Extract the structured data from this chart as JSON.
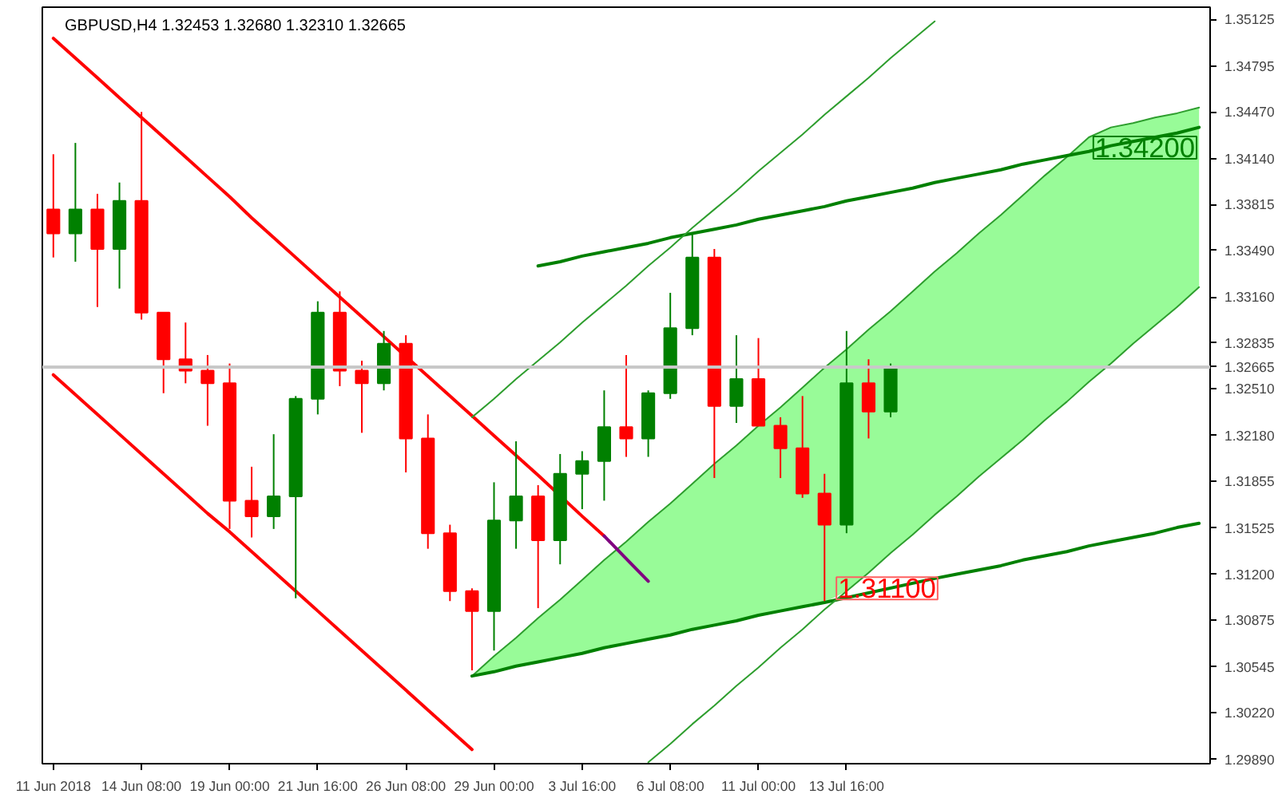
{
  "chart_data": {
    "type": "candlestick",
    "title": "GBPUSD,H4  1.32453 1.32680 1.32310 1.32665",
    "categories": [
      "11 Jun 2018",
      null,
      null,
      null,
      "14 Jun 08:00",
      null,
      null,
      null,
      "19 Jun 00:00",
      null,
      null,
      null,
      "21 Jun 16:00",
      null,
      null,
      null,
      "26 Jun 08:00",
      null,
      null,
      null,
      "29 Jun 00:00",
      null,
      null,
      null,
      "3 Jul 16:00",
      null,
      null,
      null,
      "6 Jul 08:00",
      null,
      null,
      null,
      "11 Jul 00:00",
      null,
      null,
      null,
      "13 Jul 16:00",
      null,
      null,
      null,
      null,
      null,
      null,
      null,
      null,
      null,
      null,
      null,
      null,
      null,
      null,
      null,
      null
    ],
    "ohlc": [
      [
        1.3378,
        1.3417,
        1.3344,
        1.3361
      ],
      [
        1.3361,
        1.3425,
        1.3341,
        1.3378
      ],
      [
        1.3378,
        1.3389,
        1.3309,
        1.335
      ],
      [
        1.335,
        1.3397,
        1.3322,
        1.3384
      ],
      [
        1.3384,
        1.3447,
        1.33,
        1.3305
      ],
      [
        1.3305,
        1.3305,
        1.3248,
        1.3272
      ],
      [
        1.3272,
        1.3298,
        1.3255,
        1.3264
      ],
      [
        1.3264,
        1.3275,
        1.3225,
        1.3255
      ],
      [
        1.3255,
        1.3269,
        1.3152,
        1.3172
      ],
      [
        1.3172,
        1.3196,
        1.3146,
        1.3161
      ],
      [
        1.3161,
        1.3219,
        1.3152,
        1.3175
      ],
      [
        1.3175,
        1.3246,
        1.3103,
        1.3244
      ],
      [
        1.3244,
        1.3313,
        1.3233,
        1.3305
      ],
      [
        1.3305,
        1.332,
        1.3253,
        1.3264
      ],
      [
        1.3264,
        1.3271,
        1.322,
        1.3255
      ],
      [
        1.3255,
        1.3292,
        1.325,
        1.3283
      ],
      [
        1.3283,
        1.3289,
        1.3192,
        1.3216
      ],
      [
        1.3216,
        1.3233,
        1.3138,
        1.3149
      ],
      [
        1.3149,
        1.3155,
        1.3101,
        1.3108
      ],
      [
        1.3108,
        1.311,
        1.3052,
        1.3094
      ],
      [
        1.3094,
        1.3185,
        1.3066,
        1.3158
      ],
      [
        1.3158,
        1.3214,
        1.3138,
        1.3175
      ],
      [
        1.3175,
        1.3183,
        1.3096,
        1.3144
      ],
      [
        1.3144,
        1.3205,
        1.3127,
        1.3191
      ],
      [
        1.3191,
        1.3207,
        1.3166,
        1.32
      ],
      [
        1.32,
        1.325,
        1.3172,
        1.3224
      ],
      [
        1.3224,
        1.3275,
        1.3203,
        1.3216
      ],
      [
        1.3216,
        1.325,
        1.3203,
        1.3248
      ],
      [
        1.3248,
        1.3319,
        1.3244,
        1.3294
      ],
      [
        1.3294,
        1.3361,
        1.3289,
        1.3344
      ],
      [
        1.3344,
        1.335,
        1.3188,
        1.3239
      ],
      [
        1.3239,
        1.3289,
        1.3227,
        1.3258
      ],
      [
        1.3258,
        1.3287,
        1.3225,
        1.3225
      ],
      [
        1.3225,
        1.3231,
        1.3188,
        1.3209
      ],
      [
        1.3209,
        1.3246,
        1.3174,
        1.3177
      ],
      [
        1.3177,
        1.3191,
        1.3101,
        1.3155
      ],
      [
        1.3155,
        1.3292,
        1.3149,
        1.3255
      ],
      [
        1.3255,
        1.3272,
        1.3216,
        1.3235
      ],
      [
        1.3235,
        1.3269,
        1.3231,
        1.32665
      ],
      null,
      null,
      null,
      null,
      null,
      null,
      null,
      null,
      null,
      null,
      null,
      null,
      null,
      null
    ],
    "colors": [
      "#ff0000",
      "#008000",
      "#ff0000",
      "#008000",
      "#ff0000",
      "#ff0000",
      "#ff0000",
      "#ff0000",
      "#ff0000",
      "#ff0000",
      "#008000",
      "#008000",
      "#008000",
      "#ff0000",
      "#ff0000",
      "#008000",
      "#ff0000",
      "#ff0000",
      "#ff0000",
      "#ff0000",
      "#008000",
      "#008000",
      "#ff0000",
      "#008000",
      "#008000",
      "#008000",
      "#ff0000",
      "#008000",
      "#008000",
      "#008000",
      "#ff0000",
      "#008000",
      "#ff0000",
      "#ff0000",
      "#ff0000",
      "#ff0000",
      "#008000",
      "#ff0000",
      "#008000",
      null,
      null,
      null,
      null,
      null,
      null,
      null,
      null,
      null,
      null,
      null,
      null,
      null,
      null
    ],
    "series": [
      {
        "type": "line",
        "color": "#2e9e2e",
        "values": [
          null,
          null,
          null,
          null,
          null,
          null,
          null,
          null,
          null,
          null,
          null,
          null,
          null,
          null,
          null,
          null,
          null,
          null,
          null,
          1.3048,
          1.3062,
          1.3075,
          1.3089,
          1.3102,
          1.3116,
          1.313,
          1.3143,
          1.3157,
          1.317,
          1.3184,
          1.3198,
          1.3211,
          1.3225,
          1.3238,
          1.3252,
          1.3266,
          1.3279,
          1.3293,
          1.3306,
          1.332,
          1.3334,
          1.3347,
          1.3361,
          1.3374,
          1.3388,
          1.3402,
          1.3415,
          1.3429,
          1.3436,
          1.3439,
          1.3443,
          1.3446,
          1.345
        ],
        "upper": [
          null,
          null,
          null,
          null,
          null,
          null,
          null,
          null,
          null,
          null,
          null,
          null,
          null,
          null,
          null,
          null,
          null,
          null,
          null,
          1.3048,
          1.3062,
          1.3075,
          1.3089,
          1.3102,
          1.3116,
          1.313,
          1.3143,
          1.3157,
          1.317,
          1.3184,
          1.3198,
          1.3211,
          1.3225,
          1.3238,
          1.3252,
          1.3266,
          1.3279,
          1.3293,
          1.3306,
          1.332,
          1.3334,
          1.3347,
          1.3361,
          1.3374,
          1.3388,
          1.3402,
          1.3415,
          1.3429,
          1.3436,
          1.3439,
          1.3443,
          1.3446,
          1.345
        ],
        "lower": [
          null,
          null,
          null,
          null,
          null,
          null,
          null,
          null,
          null,
          null,
          null,
          null,
          null,
          null,
          null,
          null,
          null,
          null,
          null,
          1.3048,
          1.3051,
          1.3055,
          1.3058,
          1.3061,
          1.3064,
          1.3068,
          1.3071,
          1.3074,
          1.3077,
          1.3081,
          1.3084,
          1.3087,
          1.3091,
          1.3094,
          1.3097,
          1.31,
          1.3108,
          1.3121,
          1.3135,
          1.3148,
          1.3162,
          1.3175,
          1.3189,
          1.3202,
          1.3215,
          1.3229,
          1.3242,
          1.3256,
          1.3269,
          1.3283,
          1.3296,
          1.3309,
          1.3323
        ]
      },
      {
        "type": "line",
        "color": "#ff0000",
        "values": [
          1.3499,
          1.3485,
          1.3471,
          1.3457,
          1.3443,
          1.3429,
          1.3415,
          1.3401,
          1.3387,
          1.3372,
          1.3358,
          1.3344,
          1.333,
          1.3316,
          1.3302,
          1.3288,
          1.3274,
          1.326,
          1.3246,
          1.3232,
          1.3218,
          1.3204,
          1.319,
          null,
          1.3161,
          1.3147,
          null,
          null,
          null,
          null,
          null,
          null,
          null,
          null,
          null,
          null,
          null,
          null,
          null,
          null,
          null,
          null,
          null,
          null,
          null,
          null,
          null,
          null,
          null,
          null,
          null,
          null,
          null
        ]
      },
      {
        "type": "line",
        "color": "#800080",
        "values": [
          null,
          null,
          null,
          null,
          null,
          null,
          null,
          null,
          null,
          null,
          null,
          null,
          null,
          null,
          null,
          null,
          null,
          null,
          null,
          null,
          null,
          null,
          null,
          null,
          null,
          1.3147,
          1.3131,
          1.3115,
          null,
          null,
          null,
          null,
          null,
          null,
          null,
          null,
          null,
          null,
          null,
          null,
          null,
          null,
          null,
          null,
          null,
          null,
          null,
          null,
          null,
          null,
          null,
          null,
          null
        ]
      },
      {
        "type": "line",
        "color": "#ff0000",
        "values": [
          1.3261,
          1.3247,
          1.3233,
          1.3219,
          1.3205,
          1.3191,
          1.3177,
          1.3163,
          1.315,
          1.3136,
          1.3122,
          1.3108,
          1.3094,
          1.308,
          1.3066,
          1.3052,
          1.3038,
          1.3024,
          1.301,
          1.2996,
          null,
          null,
          null,
          null,
          null,
          null,
          null,
          null,
          null,
          null,
          null,
          null,
          null,
          null,
          null,
          null,
          null,
          null,
          null,
          null,
          null,
          null,
          null,
          null,
          null,
          null,
          null,
          null,
          null,
          null,
          null,
          null,
          null
        ]
      },
      {
        "type": "line",
        "color": "#008000",
        "values": [
          null,
          null,
          null,
          null,
          null,
          null,
          null,
          null,
          null,
          null,
          null,
          null,
          null,
          null,
          null,
          null,
          null,
          null,
          null,
          null,
          null,
          null,
          1.3338,
          1.3341,
          1.3345,
          1.3348,
          1.3351,
          1.3354,
          1.3358,
          1.3361,
          1.3364,
          1.3367,
          1.3371,
          1.3374,
          1.3377,
          1.338,
          1.3384,
          1.3387,
          1.339,
          1.3393,
          1.3397,
          1.34,
          1.3403,
          1.3406,
          1.341,
          1.3413,
          1.3416,
          1.3419,
          1.3423,
          1.3426,
          1.3429,
          1.3432,
          1.3436
        ]
      },
      {
        "type": "line",
        "color": "#008000",
        "values": [
          null,
          null,
          null,
          null,
          null,
          null,
          null,
          null,
          null,
          null,
          null,
          null,
          null,
          null,
          null,
          null,
          null,
          null,
          null,
          1.3048,
          1.3051,
          1.3055,
          1.3058,
          1.3061,
          1.3064,
          1.3068,
          1.3071,
          1.3074,
          1.3077,
          1.3081,
          1.3084,
          1.3087,
          1.3091,
          1.3094,
          1.3097,
          1.31,
          null,
          null,
          null,
          null,
          1.3117,
          1.312,
          1.3123,
          1.3126,
          1.313,
          1.3133,
          1.3136,
          1.314,
          1.3143,
          1.3146,
          1.3149,
          1.3153,
          1.3156
        ]
      },
      {
        "type": "line",
        "color": "#2e9e2e",
        "values": [
          null,
          null,
          null,
          null,
          null,
          null,
          null,
          null,
          null,
          null,
          null,
          null,
          null,
          null,
          null,
          null,
          null,
          null,
          null,
          1.3231,
          1.3244,
          1.3258,
          1.3271,
          1.3284,
          1.3298,
          1.3311,
          1.3324,
          1.3338,
          1.3351,
          1.3365,
          1.3378,
          1.3391,
          1.3405,
          1.3418,
          1.3431,
          1.3445,
          1.3458,
          1.3471,
          1.3485,
          1.3498,
          1.3511,
          null,
          null,
          null,
          null,
          null,
          null,
          null,
          null,
          null,
          null,
          null,
          null
        ]
      },
      {
        "type": "line",
        "color": "#2e9e2e",
        "values": [
          null,
          null,
          null,
          null,
          null,
          null,
          null,
          null,
          null,
          null,
          null,
          null,
          null,
          null,
          null,
          null,
          null,
          null,
          null,
          null,
          null,
          null,
          null,
          null,
          null,
          null,
          null,
          1.2987,
          1.3,
          1.3014,
          1.3027,
          1.3041,
          1.3054,
          1.3068,
          1.3081,
          1.3095,
          null,
          1.3121,
          1.3135,
          1.3148,
          1.3162,
          1.3175,
          1.3189,
          1.3202,
          1.3215,
          1.3229,
          1.3242,
          1.3256,
          1.3269,
          1.3283,
          1.3296,
          1.3309,
          1.3323
        ]
      }
    ],
    "ref_lines": [
      {
        "axis": "y",
        "value": 1.32665,
        "label": "1.32665",
        "color": "#c8c8c8"
      }
    ],
    "annotations": [
      "1.34200",
      {
        "text": "1.31100",
        "y": 1.311
      }
    ],
    "ylim": [
      1.2986,
      1.3521
    ],
    "yticks": [
      {
        "value": 1.2989,
        "label": "1.29890"
      },
      {
        "value": 1.3022,
        "label": "1.30220"
      },
      1.30545,
      1.30875,
      {
        "value": 1.312,
        "label": "1.31200"
      },
      1.31525,
      1.31855,
      {
        "value": 1.3218,
        "label": "1.32180"
      },
      {
        "value": 1.3251,
        "label": "1.32510"
      },
      1.32835,
      {
        "value": 1.3316,
        "label": "1.33160"
      },
      {
        "value": 1.3349,
        "label": "1.33490"
      },
      1.33815,
      {
        "value": 1.3414,
        "label": "1.34140"
      },
      {
        "value": 1.3447,
        "label": "1.34470"
      },
      1.34795,
      1.35125
    ],
    "grid": false
  }
}
